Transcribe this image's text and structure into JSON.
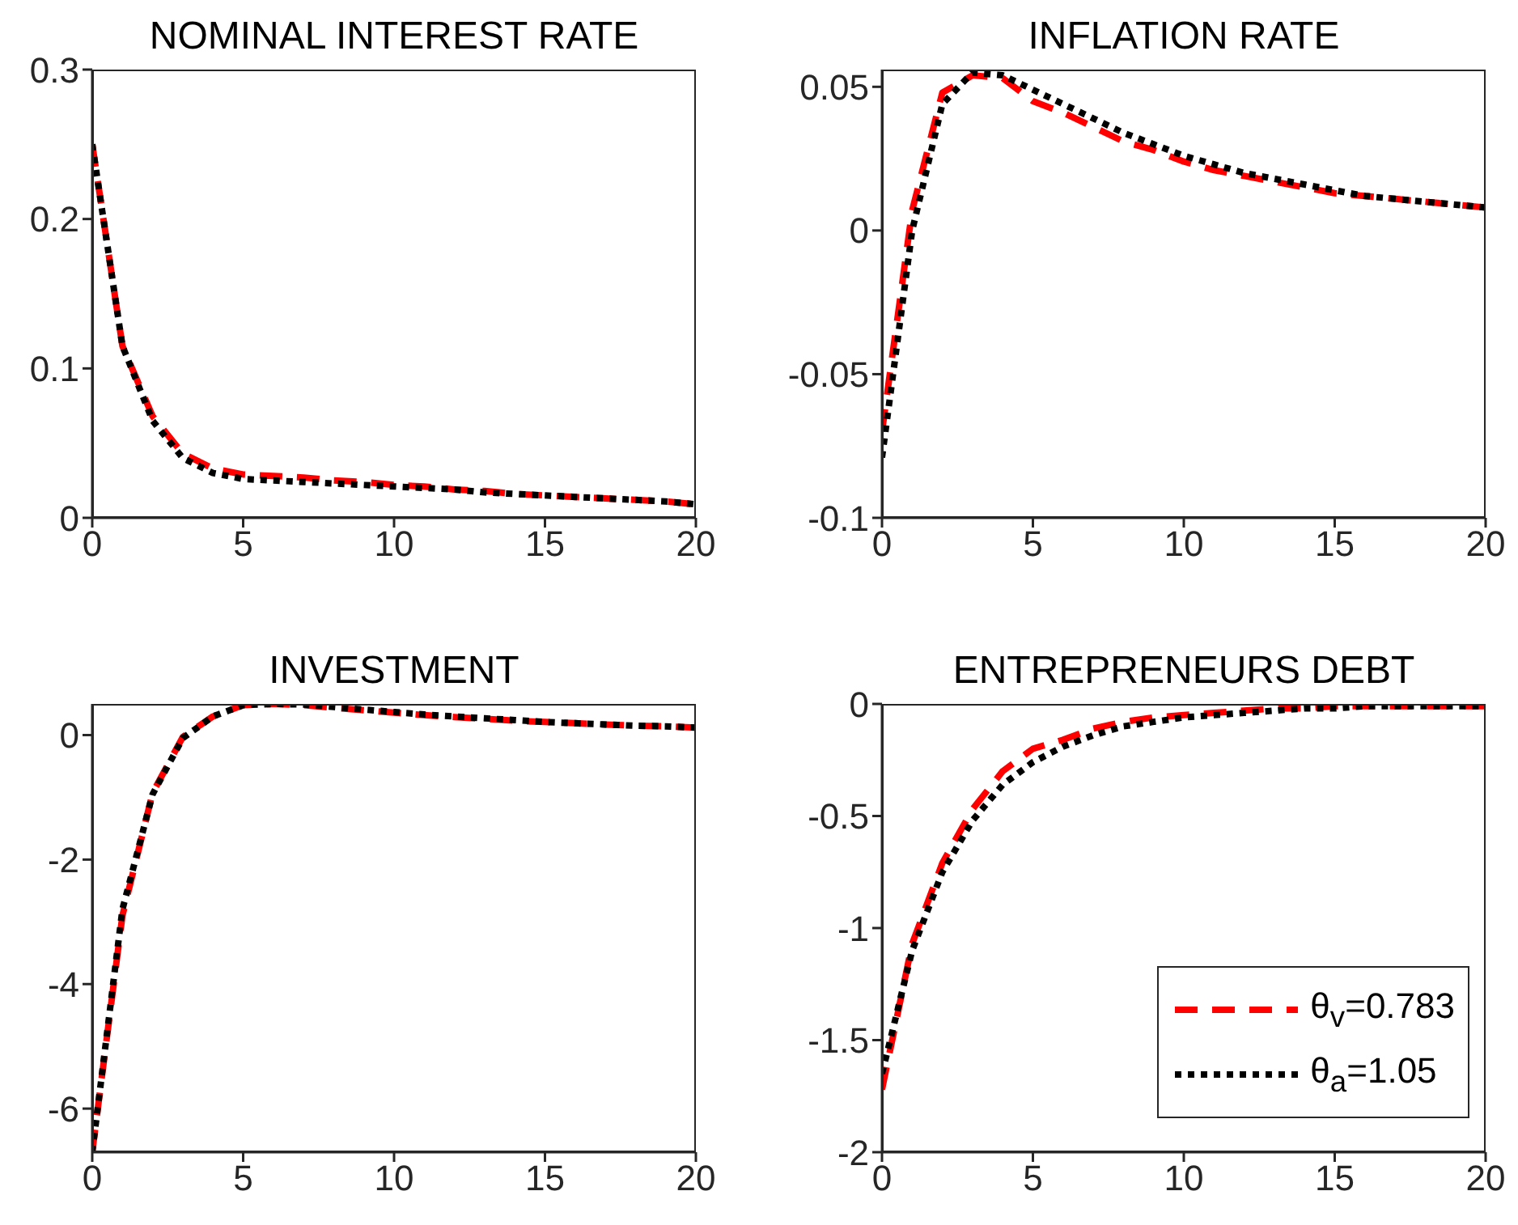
{
  "chart_data": [
    {
      "type": "line",
      "title": "NOMINAL INTEREST RATE",
      "x": [
        0,
        1,
        2,
        3,
        4,
        5,
        6,
        7,
        8,
        9,
        10,
        11,
        12,
        13,
        14,
        15,
        16,
        17,
        18,
        19,
        20
      ],
      "xlim": [
        0,
        20
      ],
      "xticks": [
        0,
        5,
        10,
        15,
        20
      ],
      "ylim": [
        0,
        0.3
      ],
      "yticks": [
        0,
        0.1,
        0.2,
        0.3
      ],
      "grid": false,
      "legend": false,
      "series": [
        {
          "color": "#ff0000",
          "line_style": "dashed",
          "values": [
            0.25,
            0.115,
            0.068,
            0.043,
            0.033,
            0.029,
            0.028,
            0.027,
            0.025,
            0.024,
            0.022,
            0.021,
            0.019,
            0.018,
            0.016,
            0.015,
            0.014,
            0.013,
            0.012,
            0.011,
            0.009
          ]
        },
        {
          "color": "#000000",
          "line_style": "dotted",
          "values": [
            0.25,
            0.115,
            0.065,
            0.04,
            0.03,
            0.026,
            0.025,
            0.024,
            0.023,
            0.022,
            0.021,
            0.02,
            0.019,
            0.017,
            0.016,
            0.015,
            0.014,
            0.013,
            0.012,
            0.011,
            0.009
          ]
        }
      ]
    },
    {
      "type": "line",
      "title": "INFLATION RATE",
      "x": [
        0,
        1,
        2,
        3,
        4,
        5,
        6,
        7,
        8,
        9,
        10,
        11,
        12,
        13,
        14,
        15,
        16,
        17,
        18,
        19,
        20
      ],
      "xlim": [
        0,
        20
      ],
      "xticks": [
        0,
        5,
        10,
        15,
        20
      ],
      "ylim": [
        -0.1,
        0.056
      ],
      "yticks": [
        -0.1,
        -0.05,
        0,
        0.05
      ],
      "grid": false,
      "legend": false,
      "series": [
        {
          "color": "#ff0000",
          "line_style": "dashed",
          "values": [
            -0.07,
            0.007,
            0.048,
            0.054,
            0.053,
            0.045,
            0.041,
            0.036,
            0.031,
            0.028,
            0.024,
            0.021,
            0.019,
            0.017,
            0.015,
            0.013,
            0.012,
            0.011,
            0.01,
            0.009,
            0.008
          ]
        },
        {
          "color": "#000000",
          "line_style": "dotted",
          "values": [
            -0.079,
            0.0,
            0.044,
            0.055,
            0.054,
            0.049,
            0.044,
            0.039,
            0.034,
            0.03,
            0.026,
            0.023,
            0.02,
            0.018,
            0.016,
            0.014,
            0.012,
            0.011,
            0.01,
            0.009,
            0.008
          ]
        }
      ]
    },
    {
      "type": "line",
      "title": "INVESTMENT",
      "x": [
        0,
        1,
        2,
        3,
        4,
        5,
        6,
        7,
        8,
        9,
        10,
        11,
        12,
        13,
        14,
        15,
        16,
        17,
        18,
        19,
        20
      ],
      "xlim": [
        0,
        20
      ],
      "xticks": [
        0,
        5,
        10,
        15,
        20
      ],
      "ylim": [
        -6.7,
        0.5
      ],
      "yticks": [
        -6,
        -4,
        -2,
        0
      ],
      "grid": false,
      "legend": false,
      "series": [
        {
          "color": "#ff0000",
          "line_style": "dashed",
          "values": [
            -6.7,
            -2.9,
            -0.93,
            -0.03,
            0.3,
            0.48,
            0.5,
            0.48,
            0.44,
            0.4,
            0.36,
            0.32,
            0.29,
            0.26,
            0.23,
            0.21,
            0.19,
            0.17,
            0.15,
            0.14,
            0.12
          ]
        },
        {
          "color": "#000000",
          "line_style": "dotted",
          "values": [
            -6.7,
            -2.8,
            -0.95,
            -0.05,
            0.3,
            0.48,
            0.5,
            0.49,
            0.45,
            0.41,
            0.37,
            0.33,
            0.3,
            0.27,
            0.24,
            0.21,
            0.19,
            0.17,
            0.15,
            0.14,
            0.12
          ]
        }
      ]
    },
    {
      "type": "line",
      "title": "ENTREPRENEURS DEBT",
      "x": [
        0,
        1,
        2,
        3,
        4,
        5,
        6,
        7,
        8,
        9,
        10,
        11,
        12,
        13,
        14,
        15,
        16,
        17,
        18,
        19,
        20
      ],
      "xlim": [
        0,
        20
      ],
      "xticks": [
        0,
        5,
        10,
        15,
        20
      ],
      "ylim": [
        -2,
        0
      ],
      "yticks": [
        -2,
        -1.5,
        -1,
        -0.5,
        0
      ],
      "grid": false,
      "legend": "bottom right",
      "series": [
        {
          "name": "θ$_{v}$=0.783",
          "color": "#ff0000",
          "line_style": "dashed",
          "values": [
            -1.72,
            -1.07,
            -0.71,
            -0.47,
            -0.3,
            -0.2,
            -0.16,
            -0.11,
            -0.08,
            -0.06,
            -0.05,
            -0.04,
            -0.03,
            -0.02,
            -0.02,
            -0.01,
            -0.01,
            -0.01,
            -0.01,
            -0.01,
            -0.01
          ]
        },
        {
          "name": "θ$_{a}$=1.05",
          "color": "#000000",
          "line_style": "dotted",
          "values": [
            -1.65,
            -1.1,
            -0.75,
            -0.52,
            -0.36,
            -0.26,
            -0.19,
            -0.14,
            -0.1,
            -0.08,
            -0.06,
            -0.05,
            -0.04,
            -0.03,
            -0.02,
            -0.02,
            -0.01,
            -0.01,
            -0.01,
            -0.01,
            -0.01
          ]
        }
      ]
    }
  ]
}
